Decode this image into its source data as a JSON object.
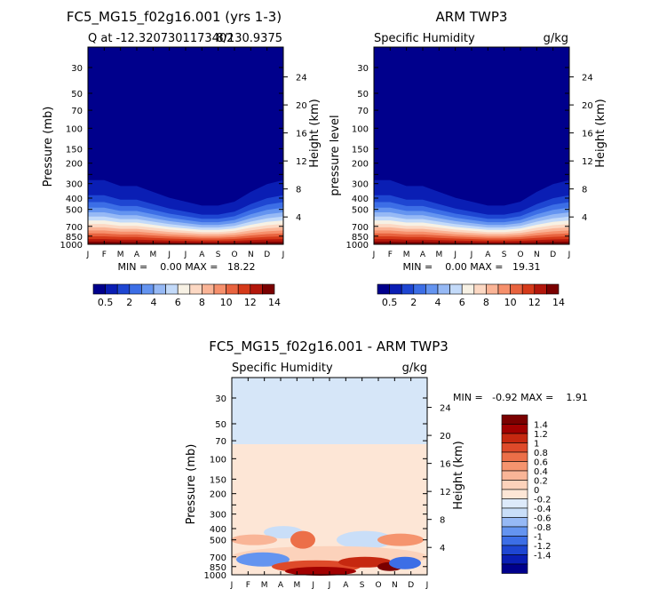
{
  "palette": {
    "blue_red": [
      "#00008c",
      "#0a1eb4",
      "#1e46d2",
      "#3c6ee6",
      "#6494f0",
      "#96b9f5",
      "#c3daf9",
      "#f7f1e4",
      "#fcd8c3",
      "#fab496",
      "#f6906c",
      "#e8633f",
      "#d53a1a",
      "#b3170b",
      "#7a0000"
    ],
    "diff": [
      "#00008c",
      "#0a1eb4",
      "#1e46d2",
      "#3c6ee6",
      "#6494f0",
      "#96b9f5",
      "#c9def8",
      "#ddeafa",
      "#fde6d6",
      "#fcd2bb",
      "#f9b597",
      "#f5946e",
      "#ec6f48",
      "#de4a2a",
      "#c62810",
      "#a10000",
      "#7a0000"
    ]
  },
  "chart_data": [
    {
      "id": "model",
      "type": "heatmap",
      "title": "FC5_MG15_f02g16.001 (yrs 1-3)",
      "subtitle_left": "Q at -12.3207301173402",
      "subtitle_right": "8/130.9375",
      "ylabel": "Pressure (mb)",
      "right_label": "Height (km)",
      "x_ticks": [
        "J",
        "F",
        "M",
        "A",
        "M",
        "J",
        "J",
        "A",
        "S",
        "O",
        "N",
        "D",
        "J"
      ],
      "y_ticks": [
        30,
        50,
        70,
        100,
        150,
        200,
        250,
        300,
        400,
        500,
        700,
        850,
        1000
      ],
      "y_tick_labels": [
        "30",
        "50",
        "70",
        "100",
        "150",
        "200",
        "300",
        "400",
        "500",
        "700",
        "850",
        "1000"
      ],
      "height_ticks": [
        4,
        8,
        12,
        16,
        20,
        24
      ],
      "stats": "MIN =    0.00 MAX =   18.22",
      "min": 0.0,
      "max": 18.22,
      "levels": [
        0.5,
        1,
        2,
        3,
        4,
        5,
        6,
        7,
        8,
        9,
        10,
        11,
        12,
        13,
        14
      ],
      "colorbar_labels": [
        "0.5",
        "2",
        "4",
        "6",
        "8",
        "10",
        "12",
        "14"
      ],
      "colorbar_label_idx": [
        0,
        2,
        4,
        6,
        8,
        10,
        12,
        14
      ],
      "month_top_offset": [
        0,
        0,
        -3,
        -3,
        -6,
        -9,
        -11,
        -13,
        -13,
        -11,
        -6,
        -2,
        0
      ]
    },
    {
      "id": "obs",
      "type": "heatmap",
      "title": "ARM TWP3",
      "subtitle_left": "Specific Humidity",
      "subtitle_right": "g/kg",
      "ylabel": "pressure  level",
      "right_label": "Height (km)",
      "x_ticks": [
        "J",
        "F",
        "M",
        "A",
        "M",
        "J",
        "J",
        "A",
        "S",
        "O",
        "N",
        "D",
        "J"
      ],
      "y_ticks": [
        30,
        50,
        70,
        100,
        150,
        200,
        250,
        300,
        400,
        500,
        700,
        850,
        1000
      ],
      "y_tick_labels": [
        "30",
        "50",
        "70",
        "100",
        "150",
        "200",
        "300",
        "400",
        "500",
        "700",
        "850",
        "1000"
      ],
      "height_ticks": [
        4,
        8,
        12,
        16,
        20,
        24
      ],
      "stats": "MIN =    0.00 MAX =   19.31",
      "min": 0.0,
      "max": 19.31,
      "levels": [
        0.5,
        1,
        2,
        3,
        4,
        5,
        6,
        7,
        8,
        9,
        10,
        11,
        12,
        13,
        14
      ],
      "colorbar_labels": [
        "0.5",
        "2",
        "4",
        "6",
        "8",
        "10",
        "12",
        "14"
      ],
      "colorbar_label_idx": [
        0,
        2,
        4,
        6,
        8,
        10,
        12,
        14
      ],
      "month_top_offset": [
        0,
        0,
        -3,
        -3,
        -6,
        -9,
        -11,
        -13,
        -13,
        -11,
        -6,
        -2,
        0
      ]
    },
    {
      "id": "diff",
      "type": "heatmap",
      "title": "FC5_MG15_f02g16.001 - ARM TWP3",
      "subtitle_left": "Specific Humidity",
      "subtitle_right": "g/kg",
      "ylabel": "Pressure (mb)",
      "right_label": "Height (km)",
      "x_ticks": [
        "J",
        "F",
        "M",
        "A",
        "M",
        "J",
        "J",
        "A",
        "S",
        "O",
        "N",
        "D",
        "J"
      ],
      "y_ticks": [
        30,
        50,
        70,
        100,
        150,
        200,
        250,
        300,
        400,
        500,
        700,
        850,
        1000
      ],
      "y_tick_labels": [
        "30",
        "50",
        "70",
        "100",
        "150",
        "200",
        "300",
        "400",
        "500",
        "700",
        "850",
        "1000"
      ],
      "height_ticks": [
        4,
        8,
        12,
        16,
        20,
        24
      ],
      "stats": "MIN =   -0.92 MAX =    1.91",
      "min": -0.92,
      "max": 1.91,
      "levels": [
        -1.4,
        -1.2,
        -1,
        -0.8,
        -0.6,
        -0.4,
        -0.2,
        0,
        0.2,
        0.4,
        0.6,
        0.8,
        1,
        1.2,
        1.4
      ],
      "colorbar_labels": [
        "1.4",
        "1.2",
        "1",
        "0.8",
        "0.6",
        "0.4",
        "0.2",
        "0",
        "-0.2",
        "-0.4",
        "-0.6",
        "-0.8",
        "-1",
        "-1.2",
        "-1.4"
      ]
    }
  ]
}
